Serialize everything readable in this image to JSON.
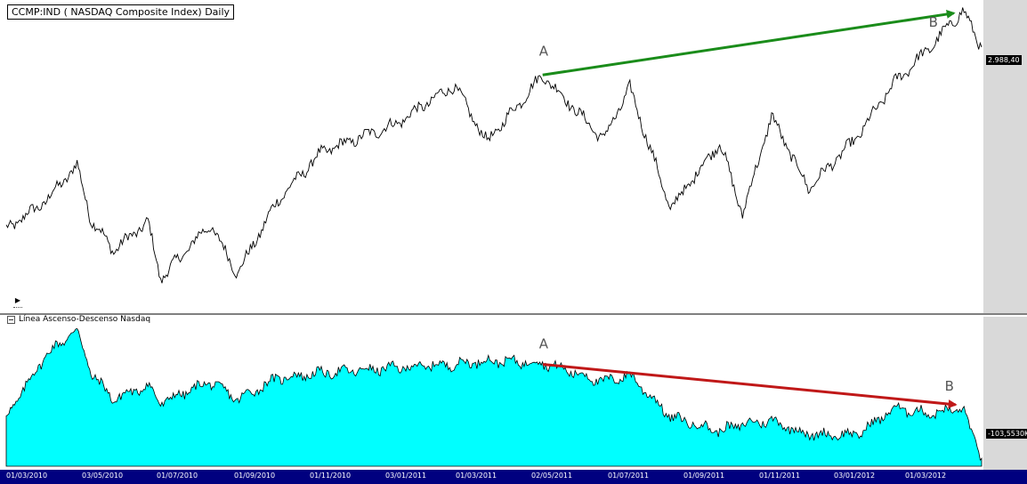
{
  "top_panel": {
    "title": "CCMP:IND ( NASDAQ Composite Index) Daily",
    "last_value_label": "2.988,40",
    "annotation_a": "A",
    "annotation_b": "B"
  },
  "bottom_panel": {
    "title": "Línea Ascenso-Descenso Nasdaq",
    "last_value_label": "-103,5530K",
    "annotation_a": "A",
    "annotation_b": "B"
  },
  "colors": {
    "fill": "#00ffff",
    "line": "#000000",
    "up_trend": "#1a8c1a",
    "down_trend": "#c01818",
    "date_bar": "#00007f",
    "scale_area": "#d9d9d9"
  },
  "icons": {
    "expand": "play-icon",
    "collapse": "collapse-icon"
  },
  "chart_data": [
    {
      "type": "line",
      "title": "CCMP:IND ( NASDAQ Composite Index) Daily",
      "x_ticks": [
        "01/03/2010",
        "03/05/2010",
        "01/07/2010",
        "01/09/2010",
        "01/11/2010",
        "03/01/2011",
        "01/03/2011",
        "02/05/2011",
        "01/07/2011",
        "01/09/2011",
        "01/11/2011",
        "03/01/2012",
        "01/03/2012"
      ],
      "x": [
        "2010-03-01",
        "2010-04-01",
        "2010-04-26",
        "2010-05-07",
        "2010-05-25",
        "2010-06-21",
        "2010-07-01",
        "2010-08-09",
        "2010-08-31",
        "2010-10-01",
        "2010-11-05",
        "2011-01-03",
        "2011-02-18",
        "2011-03-16",
        "2011-04-29",
        "2011-06-16",
        "2011-07-07",
        "2011-08-08",
        "2011-09-16",
        "2011-10-04",
        "2011-10-27",
        "2011-11-25",
        "2012-01-03",
        "2012-02-01",
        "2012-03-01",
        "2012-03-26",
        "2012-04-10"
      ],
      "series": [
        {
          "values": [
            2280,
            2390,
            2530,
            2320,
            2200,
            2310,
            2090,
            2300,
            2110,
            2390,
            2580,
            2690,
            2840,
            2620,
            2880,
            2630,
            2830,
            2360,
            2620,
            2340,
            2720,
            2440,
            2640,
            2850,
            2990,
            3130,
            2988
          ]
        }
      ],
      "last_value": 2988.4,
      "annotations": [
        {
          "label": "A",
          "x": "2011-04-29",
          "y": 2880
        },
        {
          "label": "B",
          "x": "2012-03-26",
          "y": 3130
        }
      ],
      "trend_arrow": {
        "from": "A",
        "to": "B",
        "direction": "up"
      }
    },
    {
      "type": "area",
      "title": "Línea Ascenso-Descenso Nasdaq",
      "x_ticks": [
        "01/03/2010",
        "03/05/2010",
        "01/07/2010",
        "01/09/2010",
        "01/11/2010",
        "03/01/2011",
        "01/03/2011",
        "02/05/2011",
        "01/07/2011",
        "01/09/2011",
        "01/11/2011",
        "03/01/2012",
        "01/03/2012"
      ],
      "x": [
        "2010-03-01",
        "2010-04-01",
        "2010-04-26",
        "2010-05-07",
        "2010-05-25",
        "2010-06-21",
        "2010-07-01",
        "2010-08-09",
        "2010-08-31",
        "2010-10-01",
        "2010-11-05",
        "2011-01-03",
        "2011-02-18",
        "2011-03-16",
        "2011-04-29",
        "2011-06-16",
        "2011-07-07",
        "2011-08-08",
        "2011-09-16",
        "2011-10-04",
        "2011-10-27",
        "2011-11-25",
        "2012-01-03",
        "2012-02-01",
        "2012-03-01",
        "2012-03-26",
        "2012-04-10"
      ],
      "series": [
        {
          "values": [
            -80,
            -45,
            -30,
            -55,
            -70,
            -62,
            -72,
            -60,
            -70,
            -58,
            -55,
            -52,
            -50,
            -48,
            -49,
            -60,
            -56,
            -80,
            -88,
            -84,
            -82,
            -90,
            -90,
            -75,
            -78,
            -75,
            -103.553
          ]
        }
      ],
      "last_value": -103.553,
      "annotations": [
        {
          "label": "A",
          "x": "2011-04-29",
          "y": -49
        },
        {
          "label": "B",
          "x": "2012-03-26",
          "y": -75
        }
      ],
      "trend_arrow": {
        "from": "A",
        "to": "B",
        "direction": "down"
      }
    }
  ]
}
